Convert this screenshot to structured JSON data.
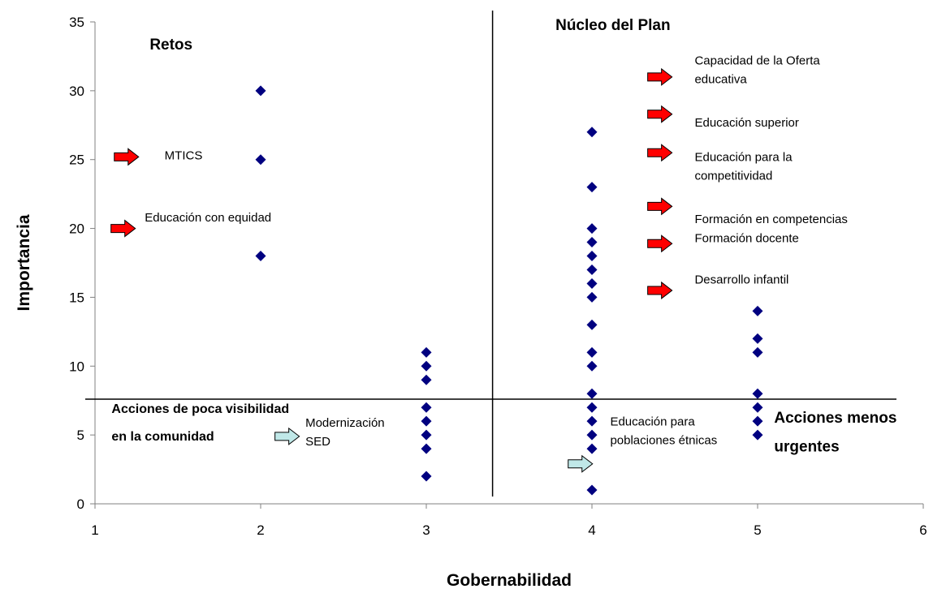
{
  "chart_data": {
    "type": "scatter",
    "xlabel": "Gobernabilidad",
    "ylabel": "Importancia",
    "xlim": [
      1,
      6
    ],
    "ylim": [
      0,
      35
    ],
    "x_ticks": [
      "1",
      "2",
      "3",
      "4",
      "5",
      "6"
    ],
    "y_ticks": [
      "0",
      "5",
      "10",
      "15",
      "20",
      "25",
      "30",
      "35"
    ],
    "grid": false,
    "legend": "none",
    "point_color": "#000080",
    "divider_x": 3.4,
    "divider_y": 7.6,
    "points": [
      {
        "x": 2,
        "y": 30
      },
      {
        "x": 2,
        "y": 25
      },
      {
        "x": 2,
        "y": 18
      },
      {
        "x": 3,
        "y": 11
      },
      {
        "x": 3,
        "y": 10
      },
      {
        "x": 3,
        "y": 9
      },
      {
        "x": 3,
        "y": 7
      },
      {
        "x": 3,
        "y": 6
      },
      {
        "x": 3,
        "y": 5
      },
      {
        "x": 3,
        "y": 4
      },
      {
        "x": 3,
        "y": 2
      },
      {
        "x": 4,
        "y": 27
      },
      {
        "x": 4,
        "y": 23
      },
      {
        "x": 4,
        "y": 20
      },
      {
        "x": 4,
        "y": 19
      },
      {
        "x": 4,
        "y": 18
      },
      {
        "x": 4,
        "y": 17
      },
      {
        "x": 4,
        "y": 16
      },
      {
        "x": 4,
        "y": 15
      },
      {
        "x": 4,
        "y": 13
      },
      {
        "x": 4,
        "y": 11
      },
      {
        "x": 4,
        "y": 10
      },
      {
        "x": 4,
        "y": 8
      },
      {
        "x": 4,
        "y": 7
      },
      {
        "x": 4,
        "y": 6
      },
      {
        "x": 4,
        "y": 5
      },
      {
        "x": 4,
        "y": 4
      },
      {
        "x": 4,
        "y": 1
      },
      {
        "x": 5,
        "y": 14
      },
      {
        "x": 5,
        "y": 12
      },
      {
        "x": 5,
        "y": 11
      },
      {
        "x": 5,
        "y": 8
      },
      {
        "x": 5,
        "y": 7
      },
      {
        "x": 5,
        "y": 6
      },
      {
        "x": 5,
        "y": 5
      }
    ],
    "quadrant_labels": [
      {
        "text": "Retos",
        "x": 1.33,
        "y": 33.0,
        "style": "bold"
      },
      {
        "text": "Núcleo del Plan",
        "x": 3.78,
        "y": 34.4,
        "style": "bold"
      },
      {
        "text": "Acciones de poca visibilidad",
        "x": 1.1,
        "y": 6.6,
        "style": "bold-sm"
      },
      {
        "text": "en la comunidad",
        "x": 1.1,
        "y": 4.6,
        "style": "bold-sm"
      },
      {
        "text": "Acciones menos",
        "x": 5.1,
        "y": 5.9,
        "style": "bold"
      },
      {
        "text": "urgentes",
        "x": 5.1,
        "y": 3.8,
        "style": "bold"
      }
    ],
    "annotations": [
      {
        "lines": [
          "MTICS"
        ],
        "x": 1.42,
        "y": 25.0,
        "arrow": {
          "x": 1.19,
          "y": 25.2,
          "color": "#ff0000"
        }
      },
      {
        "lines": [
          "Educación con equidad"
        ],
        "x": 1.3,
        "y": 20.5,
        "arrow": {
          "x": 1.17,
          "y": 20.0,
          "color": "#ff0000"
        }
      },
      {
        "lines": [
          "Capacidad de la Oferta",
          "educativa"
        ],
        "x": 4.62,
        "y": 31.9,
        "arrow": {
          "x": 4.41,
          "y": 31.0,
          "color": "#ff0000"
        }
      },
      {
        "lines": [
          "Educación superior"
        ],
        "x": 4.62,
        "y": 27.4,
        "arrow": {
          "x": 4.41,
          "y": 28.3,
          "color": "#ff0000"
        }
      },
      {
        "lines": [
          "Educación para la",
          "competitividad"
        ],
        "x": 4.62,
        "y": 24.9,
        "arrow": {
          "x": 4.41,
          "y": 25.5,
          "color": "#ff0000"
        }
      },
      {
        "lines": [
          "Formación en competencias"
        ],
        "x": 4.62,
        "y": 20.4,
        "arrow": {
          "x": 4.41,
          "y": 21.6,
          "color": "#ff0000"
        }
      },
      {
        "lines": [
          "Formación docente"
        ],
        "x": 4.62,
        "y": 19.0,
        "arrow": {
          "x": 4.41,
          "y": 18.9,
          "color": "#ff0000"
        }
      },
      {
        "lines": [
          "Desarrollo infantil"
        ],
        "x": 4.62,
        "y": 16.0,
        "arrow": {
          "x": 4.41,
          "y": 15.5,
          "color": "#ff0000"
        }
      },
      {
        "lines": [
          "Modernización",
          "SED"
        ],
        "x": 2.27,
        "y": 5.6,
        "arrow": {
          "x": 2.16,
          "y": 4.9,
          "color": "#c0e8e8"
        }
      },
      {
        "lines": [
          "Educación para",
          "poblaciones étnicas"
        ],
        "x": 4.11,
        "y": 5.7,
        "arrow": {
          "x": 3.93,
          "y": 2.9,
          "color": "#c0e8e8"
        }
      }
    ]
  }
}
